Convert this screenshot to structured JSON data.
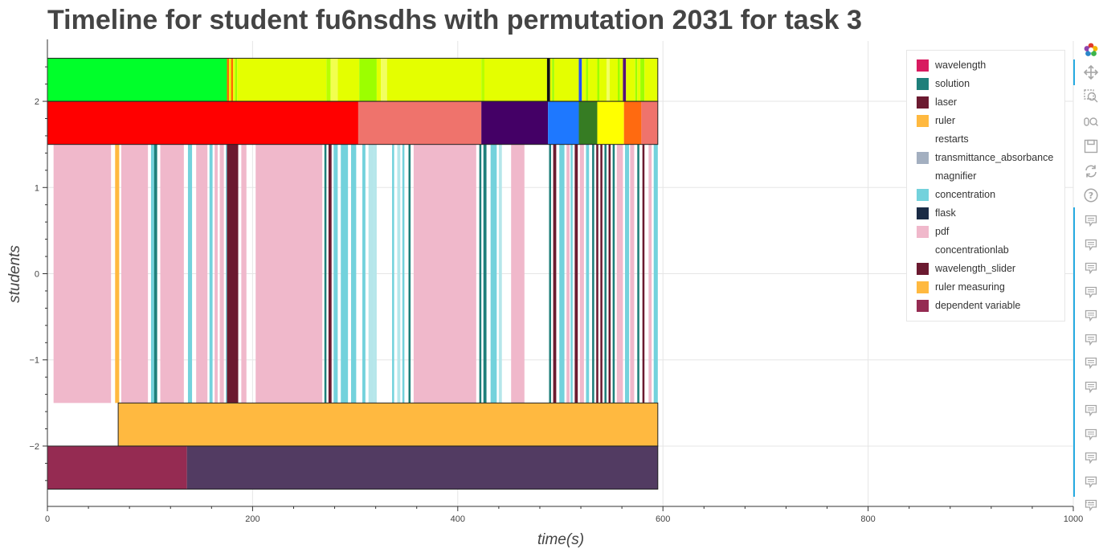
{
  "title": "Timeline for student fu6nsdhs with permutation 2031 for task 3",
  "toolbar": {
    "tools": [
      "bokeh-logo-icon",
      "pan-icon",
      "box-zoom-icon",
      "wheel-zoom-icon",
      "save-icon",
      "reset-icon",
      "help-icon"
    ],
    "note_count": 13,
    "more": "⋯"
  },
  "chart_data": {
    "type": "timeline",
    "title": "Timeline for student fu6nsdhs with permutation 2031 for task 3",
    "xlabel": "time(s)",
    "ylabel": "students",
    "xlim": [
      0,
      1000
    ],
    "ylim": [
      -2.7,
      2.7
    ],
    "xticks": [
      0,
      200,
      400,
      600,
      800,
      1000
    ],
    "yticks": [
      -2,
      -1,
      0,
      1,
      2
    ],
    "ytick_labels": [
      "−2",
      "−1",
      "0",
      "1",
      "2"
    ],
    "grid": true,
    "legend_position": "top-right",
    "legend": [
      {
        "label": "wavelength",
        "color": "#d81b60"
      },
      {
        "label": "solution",
        "color": "#1e7f7a"
      },
      {
        "label": "laser",
        "color": "#6b1a30"
      },
      {
        "label": "ruler",
        "color": "#ffb940"
      },
      {
        "label": "restarts",
        "color": "#ffffff"
      },
      {
        "label": "transmittance_absorbance",
        "color": "#a3afc0"
      },
      {
        "label": "magnifier",
        "color": "#ffffff"
      },
      {
        "label": "concentration",
        "color": "#73d2dc"
      },
      {
        "label": "flask",
        "color": "#1a2b45"
      },
      {
        "label": "pdf",
        "color": "#f0b8cb"
      },
      {
        "label": "concentrationlab",
        "color": "#ffffff"
      },
      {
        "label": "wavelength_slider",
        "color": "#6b1a30"
      },
      {
        "label": "ruler measuring",
        "color": "#ffb940"
      },
      {
        "label": "dependent variable",
        "color": "#952b52"
      }
    ],
    "rows": [
      {
        "y0": 2.0,
        "y1": 2.5,
        "segments": [
          {
            "x0": 0,
            "x1": 175,
            "color": "#00ff2a"
          },
          {
            "x0": 175,
            "x1": 177,
            "color": "#ff6a00"
          },
          {
            "x0": 177,
            "x1": 179,
            "color": "#e4ff00"
          },
          {
            "x0": 179,
            "x1": 181,
            "color": "#ff6a00"
          },
          {
            "x0": 181,
            "x1": 183,
            "color": "#e4ff00"
          },
          {
            "x0": 183,
            "x1": 185,
            "color": "#9cff00"
          },
          {
            "x0": 185,
            "x1": 272,
            "color": "#e4ff00"
          },
          {
            "x0": 272,
            "x1": 276,
            "color": "#b8ff00"
          },
          {
            "x0": 276,
            "x1": 283,
            "color": "#f2ff50"
          },
          {
            "x0": 283,
            "x1": 304,
            "color": "#e4ff00"
          },
          {
            "x0": 304,
            "x1": 321,
            "color": "#9cff00"
          },
          {
            "x0": 321,
            "x1": 325,
            "color": "#e4ff00"
          },
          {
            "x0": 325,
            "x1": 331,
            "color": "#f2ff60"
          },
          {
            "x0": 331,
            "x1": 423,
            "color": "#e4ff00"
          },
          {
            "x0": 423,
            "x1": 426,
            "color": "#b8ff00"
          },
          {
            "x0": 426,
            "x1": 487,
            "color": "#e4ff00"
          },
          {
            "x0": 487,
            "x1": 490,
            "color": "#111111"
          },
          {
            "x0": 490,
            "x1": 492,
            "color": "#e4ff00"
          },
          {
            "x0": 492,
            "x1": 494,
            "color": "#9cff00"
          },
          {
            "x0": 494,
            "x1": 518,
            "color": "#e4ff00"
          },
          {
            "x0": 518,
            "x1": 521,
            "color": "#2050ff"
          },
          {
            "x0": 521,
            "x1": 525,
            "color": "#e4ff00"
          },
          {
            "x0": 525,
            "x1": 527,
            "color": "#9cff00"
          },
          {
            "x0": 527,
            "x1": 536,
            "color": "#e4ff00"
          },
          {
            "x0": 536,
            "x1": 538,
            "color": "#9cff00"
          },
          {
            "x0": 538,
            "x1": 545,
            "color": "#e4ff00"
          },
          {
            "x0": 545,
            "x1": 548,
            "color": "#f2ff60"
          },
          {
            "x0": 548,
            "x1": 556,
            "color": "#e4ff00"
          },
          {
            "x0": 556,
            "x1": 558,
            "color": "#9cff00"
          },
          {
            "x0": 558,
            "x1": 561,
            "color": "#e4ff00"
          },
          {
            "x0": 561,
            "x1": 564,
            "color": "#55117a"
          },
          {
            "x0": 564,
            "x1": 573,
            "color": "#e4ff00"
          },
          {
            "x0": 573,
            "x1": 575,
            "color": "#9cff00"
          },
          {
            "x0": 575,
            "x1": 578,
            "color": "#e4ff00"
          },
          {
            "x0": 578,
            "x1": 582,
            "color": "#9cff00"
          },
          {
            "x0": 582,
            "x1": 595,
            "color": "#e4ff00"
          }
        ]
      },
      {
        "y0": 1.5,
        "y1": 2.0,
        "segments": [
          {
            "x0": 0,
            "x1": 303,
            "color": "#ff0000"
          },
          {
            "x0": 303,
            "x1": 423,
            "color": "#ef736c"
          },
          {
            "x0": 423,
            "x1": 488,
            "color": "#440066"
          },
          {
            "x0": 488,
            "x1": 518,
            "color": "#1e78ff"
          },
          {
            "x0": 518,
            "x1": 536,
            "color": "#367c23"
          },
          {
            "x0": 536,
            "x1": 562,
            "color": "#ffff00"
          },
          {
            "x0": 562,
            "x1": 579,
            "color": "#ff6a10"
          },
          {
            "x0": 579,
            "x1": 595,
            "color": "#ef736c"
          }
        ]
      },
      {
        "y0": -1.5,
        "y1": 1.5,
        "segments": [
          {
            "x0": 6,
            "x1": 62,
            "color": "#f0b8cb"
          },
          {
            "x0": 66,
            "x1": 70,
            "color": "#ffb940"
          },
          {
            "x0": 72,
            "x1": 98,
            "color": "#f0b8cb"
          },
          {
            "x0": 101,
            "x1": 104,
            "color": "#73d2dc"
          },
          {
            "x0": 104,
            "x1": 107,
            "color": "#1e7f7a"
          },
          {
            "x0": 110,
            "x1": 133,
            "color": "#f0b8cb"
          },
          {
            "x0": 137,
            "x1": 141,
            "color": "#73d2dc"
          },
          {
            "x0": 145,
            "x1": 156,
            "color": "#f0b8cb"
          },
          {
            "x0": 158,
            "x1": 161,
            "color": "#73d2dc"
          },
          {
            "x0": 163,
            "x1": 166,
            "color": "#f0b8cb"
          },
          {
            "x0": 168,
            "x1": 172,
            "color": "#f0b8cb"
          },
          {
            "x0": 174,
            "x1": 176,
            "color": "#73d2dc"
          },
          {
            "x0": 175,
            "x1": 186,
            "color": "#6b1a30"
          },
          {
            "x0": 189,
            "x1": 194,
            "color": "#f0b8cb"
          },
          {
            "x0": 203,
            "x1": 268,
            "color": "#f0b8cb"
          },
          {
            "x0": 270,
            "x1": 272,
            "color": "#1e7f7a"
          },
          {
            "x0": 274,
            "x1": 277,
            "color": "#6b1a30"
          },
          {
            "x0": 279,
            "x1": 283,
            "color": "#73d2dc"
          },
          {
            "x0": 286,
            "x1": 293,
            "color": "#73d2dc"
          },
          {
            "x0": 296,
            "x1": 301,
            "color": "#73d2dc"
          },
          {
            "x0": 307,
            "x1": 310,
            "color": "#73d2dc"
          },
          {
            "x0": 313,
            "x1": 318,
            "color": "#b5e6ea"
          },
          {
            "x0": 318,
            "x1": 321,
            "color": "#b5e6ea"
          },
          {
            "x0": 336,
            "x1": 338,
            "color": "#73d2dc"
          },
          {
            "x0": 341,
            "x1": 344,
            "color": "#b5e6ea"
          },
          {
            "x0": 346,
            "x1": 348,
            "color": "#73d2dc"
          },
          {
            "x0": 352,
            "x1": 354,
            "color": "#1e7f7a"
          },
          {
            "x0": 357,
            "x1": 418,
            "color": "#f0b8cb"
          },
          {
            "x0": 421,
            "x1": 423,
            "color": "#1e7f7a"
          },
          {
            "x0": 425,
            "x1": 428,
            "color": "#1e7f7a"
          },
          {
            "x0": 432,
            "x1": 438,
            "color": "#73d2dc"
          },
          {
            "x0": 440,
            "x1": 443,
            "color": "#b5e6ea"
          },
          {
            "x0": 452,
            "x1": 465,
            "color": "#f0b8cb"
          },
          {
            "x0": 489,
            "x1": 491,
            "color": "#1e7f7a"
          },
          {
            "x0": 493,
            "x1": 496,
            "color": "#6b1a30"
          },
          {
            "x0": 499,
            "x1": 504,
            "color": "#73d2dc"
          },
          {
            "x0": 506,
            "x1": 509,
            "color": "#f0b8cb"
          },
          {
            "x0": 510,
            "x1": 512,
            "color": "#73d2dc"
          },
          {
            "x0": 514,
            "x1": 517,
            "color": "#6b1a30"
          },
          {
            "x0": 519,
            "x1": 523,
            "color": "#f0b8cb"
          },
          {
            "x0": 525,
            "x1": 528,
            "color": "#73d2dc"
          },
          {
            "x0": 531,
            "x1": 533,
            "color": "#1e7f7a"
          },
          {
            "x0": 535,
            "x1": 537,
            "color": "#6b1a30"
          },
          {
            "x0": 539,
            "x1": 541,
            "color": "#6b1a30"
          },
          {
            "x0": 543,
            "x1": 545,
            "color": "#1e7f7a"
          },
          {
            "x0": 547,
            "x1": 549,
            "color": "#6b1a30"
          },
          {
            "x0": 551,
            "x1": 553,
            "color": "#1e7f7a"
          },
          {
            "x0": 555,
            "x1": 561,
            "color": "#f0b8cb"
          },
          {
            "x0": 563,
            "x1": 567,
            "color": "#73d2dc"
          },
          {
            "x0": 568,
            "x1": 572,
            "color": "#f0b8cb"
          },
          {
            "x0": 575,
            "x1": 577,
            "color": "#1e7f7a"
          },
          {
            "x0": 580,
            "x1": 582,
            "color": "#6b1a30"
          },
          {
            "x0": 586,
            "x1": 589,
            "color": "#f0b8cb"
          },
          {
            "x0": 591,
            "x1": 595,
            "color": "#73d2dc"
          }
        ]
      },
      {
        "y0": -2.0,
        "y1": -1.5,
        "segments": [
          {
            "x0": 69,
            "x1": 595,
            "color": "#ffb940"
          }
        ]
      },
      {
        "y0": -2.5,
        "y1": -2.0,
        "segments": [
          {
            "x0": 0,
            "x1": 136,
            "color": "#952b52"
          },
          {
            "x0": 136,
            "x1": 595,
            "color": "#523b62"
          }
        ]
      }
    ],
    "outline_rows": [
      [
        2.0,
        2.5
      ],
      [
        1.5,
        2.0
      ],
      [
        -2.0,
        -1.5
      ],
      [
        -2.5,
        -2.0
      ]
    ],
    "outline_xmax": 595
  }
}
